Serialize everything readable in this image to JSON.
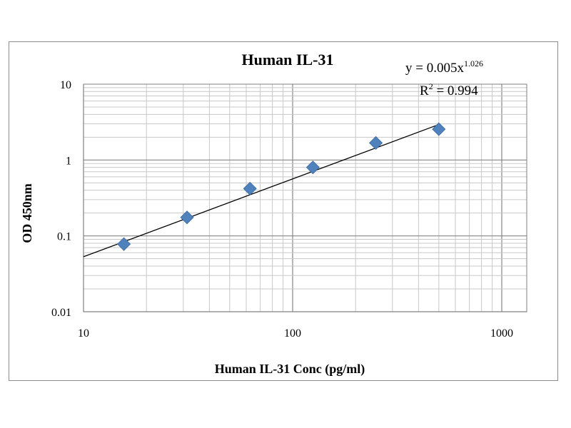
{
  "chart_data": {
    "type": "scatter",
    "title": "Human IL-31",
    "xlabel": "Human IL-31 Conc (pg/ml)",
    "ylabel": "OD 450nm",
    "x_scale": "log",
    "y_scale": "log",
    "xlim": [
      10,
      1000
    ],
    "ylim": [
      0.01,
      10
    ],
    "x_ticks": [
      "10",
      "100",
      "1000"
    ],
    "y_ticks": [
      "10",
      "1",
      "0.1",
      "0.01"
    ],
    "grid": true,
    "series": [
      {
        "x": [
          15.6,
          31.25,
          62.5,
          125,
          250,
          500
        ],
        "y": [
          0.078,
          0.175,
          0.42,
          0.8,
          1.68,
          2.55
        ],
        "marker": "diamond",
        "color": "#4f81bd"
      }
    ],
    "trendline": {
      "type": "power",
      "coefficient": 0.005,
      "exponent": 1.026,
      "equation_prefix": "y = 0.005x",
      "equation_exponent": "1.026",
      "r2_prefix": "R",
      "r2_sup": "2",
      "r2_value": " = 0.994",
      "color": "#000000"
    }
  }
}
